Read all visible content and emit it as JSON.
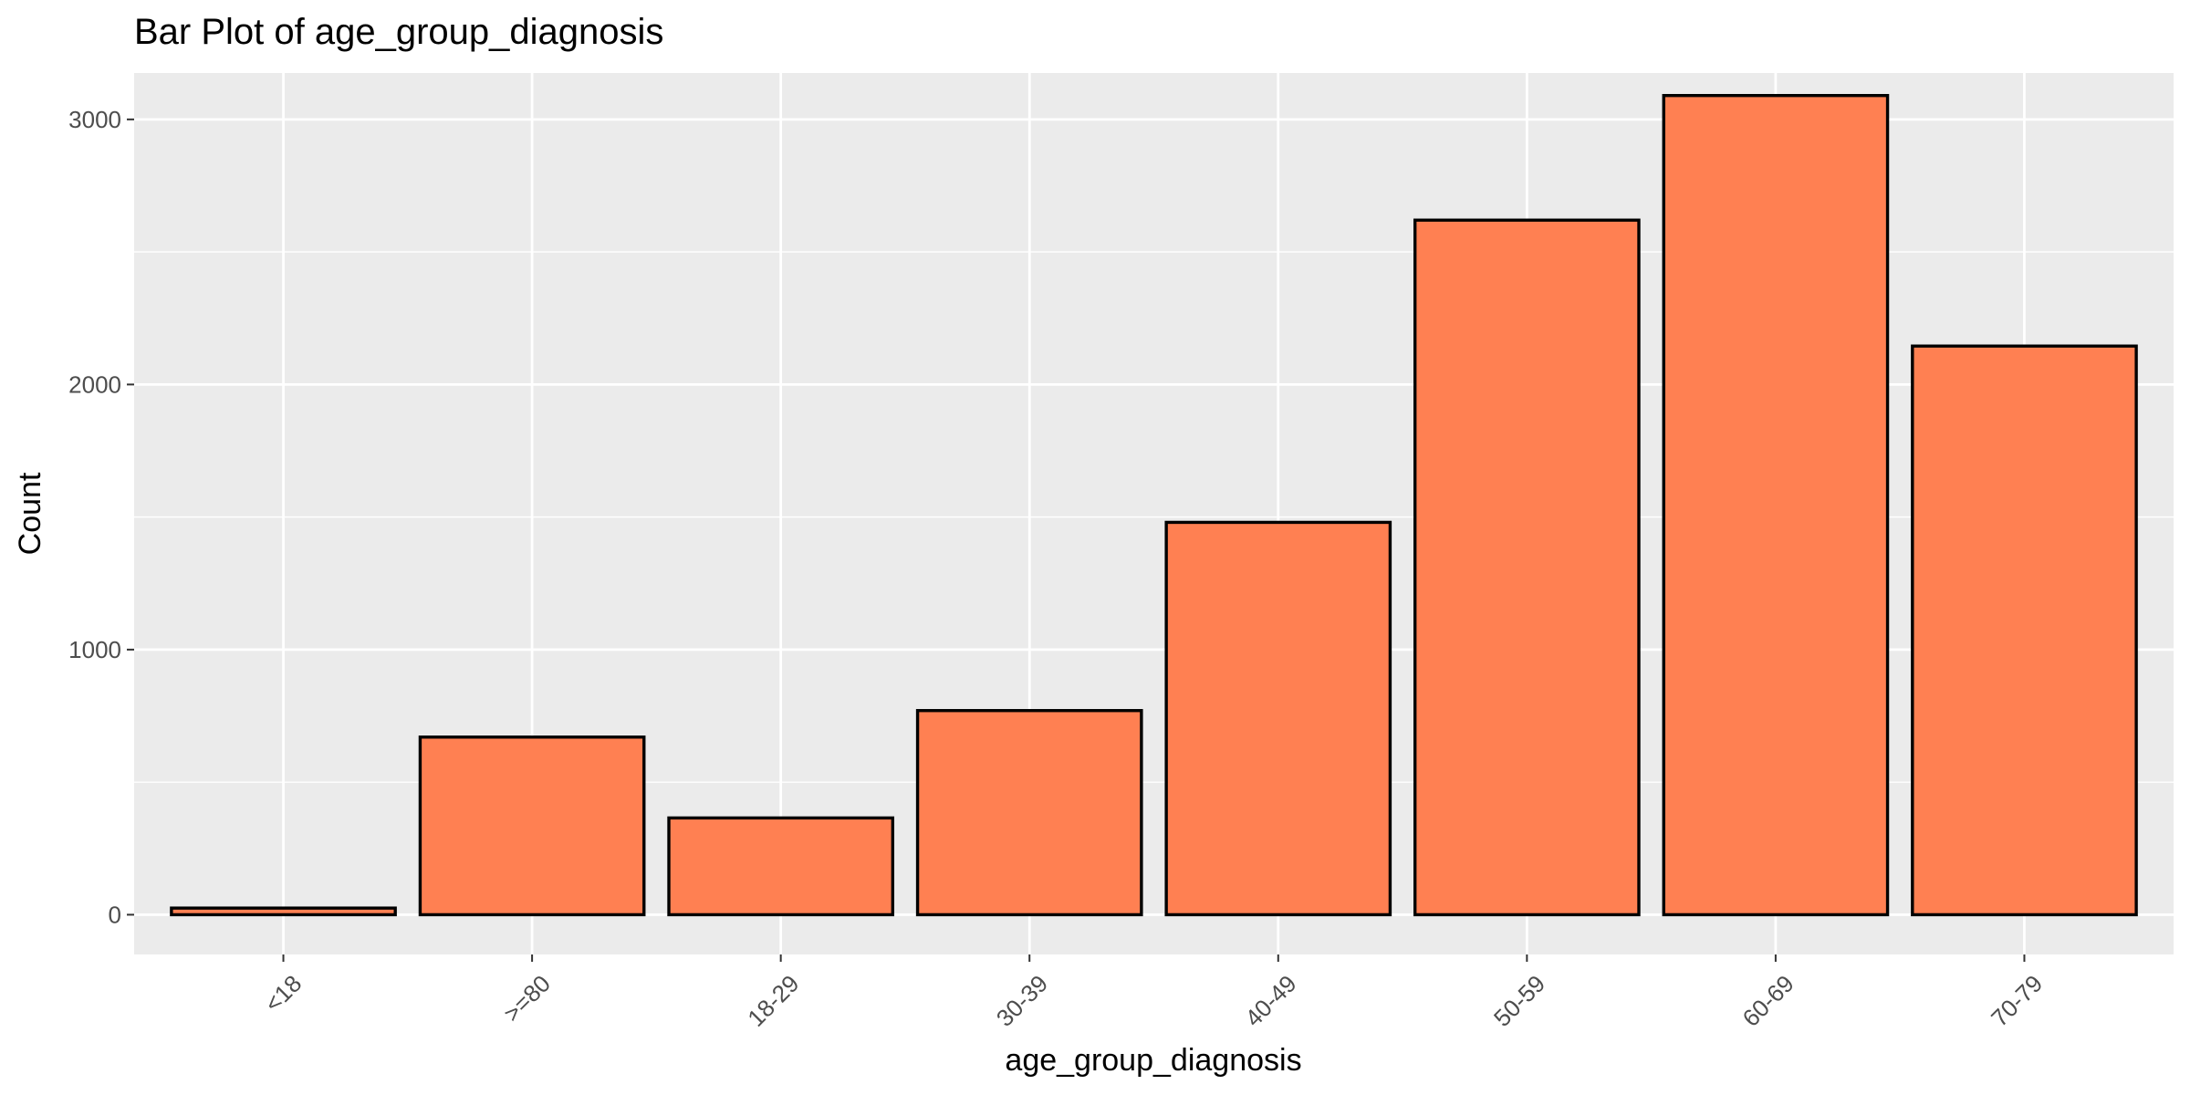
{
  "chart_data": {
    "type": "bar",
    "title": "Bar Plot of age_group_diagnosis",
    "xlabel": "age_group_diagnosis",
    "ylabel": "Count",
    "categories": [
      "<18",
      ">=80",
      "18-29",
      "30-39",
      "40-49",
      "50-59",
      "60-69",
      "70-79"
    ],
    "values": [
      25,
      670,
      365,
      770,
      1480,
      2620,
      3090,
      2145
    ],
    "ylim": [
      -150,
      3175
    ],
    "yticks": [
      0,
      1000,
      2000,
      3000
    ],
    "ytick_labels": [
      "0",
      "1000",
      "2000",
      "3000"
    ],
    "grid": true,
    "legend": "none",
    "colors": {
      "bar_fill": "#FF8052",
      "bar_stroke": "#000000",
      "panel_background": "#EBEBEB",
      "grid": "#FFFFFF"
    }
  }
}
